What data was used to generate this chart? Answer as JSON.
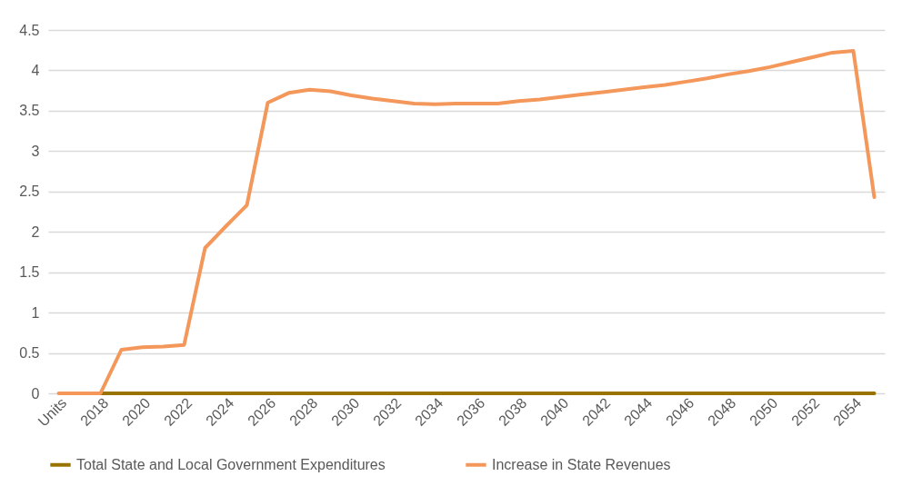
{
  "chart_data": {
    "type": "line",
    "categories": [
      "Units",
      null,
      "2018",
      null,
      "2020",
      null,
      "2022",
      null,
      "2024",
      null,
      "2026",
      null,
      "2028",
      null,
      "2030",
      null,
      "2032",
      null,
      "2034",
      null,
      "2036",
      null,
      "2038",
      null,
      "2040",
      null,
      "2042",
      null,
      "2044",
      null,
      "2046",
      null,
      "2048",
      null,
      "2050",
      null,
      "2052",
      null,
      "2054",
      null
    ],
    "series": [
      {
        "name": "Total State and Local Government Expenditures",
        "color": "#997300",
        "values": [
          null,
          null,
          0,
          0,
          0,
          0,
          0,
          0,
          0,
          0,
          0,
          0,
          0,
          0,
          0,
          0,
          0,
          0,
          0,
          0,
          0,
          0,
          0,
          0,
          0,
          0,
          0,
          0,
          0,
          0,
          0,
          0,
          0,
          0,
          0,
          0,
          0,
          0,
          0,
          0
        ]
      },
      {
        "name": "Increase in State Revenues",
        "color": "#f4975a",
        "values": [
          0,
          0,
          0,
          0.54,
          0.57,
          0.58,
          0.6,
          1.8,
          2.07,
          2.33,
          3.6,
          3.72,
          3.76,
          3.74,
          3.69,
          3.65,
          3.62,
          3.59,
          3.58,
          3.59,
          3.59,
          3.59,
          3.62,
          3.64,
          3.67,
          3.7,
          3.73,
          3.76,
          3.79,
          3.82,
          3.86,
          3.9,
          3.95,
          3.99,
          4.04,
          4.1,
          4.16,
          4.22,
          4.24,
          2.43
        ]
      }
    ],
    "ylim": [
      0,
      4.5
    ],
    "yticks": [
      0,
      0.5,
      1,
      1.5,
      2,
      2.5,
      3,
      3.5,
      4,
      4.5
    ],
    "grid": "y",
    "legend": "bottom",
    "line_style": "solid",
    "marker": "none"
  }
}
